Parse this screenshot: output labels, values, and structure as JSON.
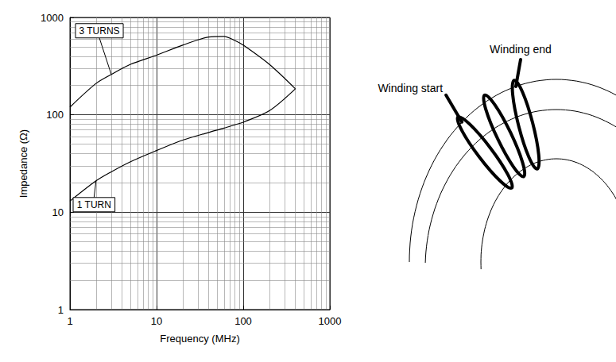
{
  "chart_data": {
    "type": "line",
    "x_label": "Frequency (MHz)",
    "y_label": "Impedance (Ω)",
    "log": true,
    "grid": true,
    "xlim": [
      1,
      1000
    ],
    "ylim": [
      1,
      1000
    ],
    "xticks": [
      1,
      10,
      100,
      1000
    ],
    "yticks": [
      1,
      10,
      100,
      1000
    ],
    "x": [
      1,
      2,
      3,
      5,
      10,
      20,
      40,
      60,
      80,
      100,
      200,
      400
    ],
    "series": [
      {
        "name": "3 TURNS",
        "color": "#000000",
        "values": [
          120,
          210,
          260,
          330,
          410,
          520,
          630,
          640,
          580,
          520,
          330,
          185
        ]
      },
      {
        "name": "1 TURN",
        "color": "#000000",
        "values": [
          13,
          21,
          26,
          33,
          43,
          55,
          66,
          73,
          79,
          84,
          110,
          185
        ]
      }
    ]
  },
  "diagram": {
    "winding_start": "Winding start",
    "winding_end": "Winding end"
  }
}
